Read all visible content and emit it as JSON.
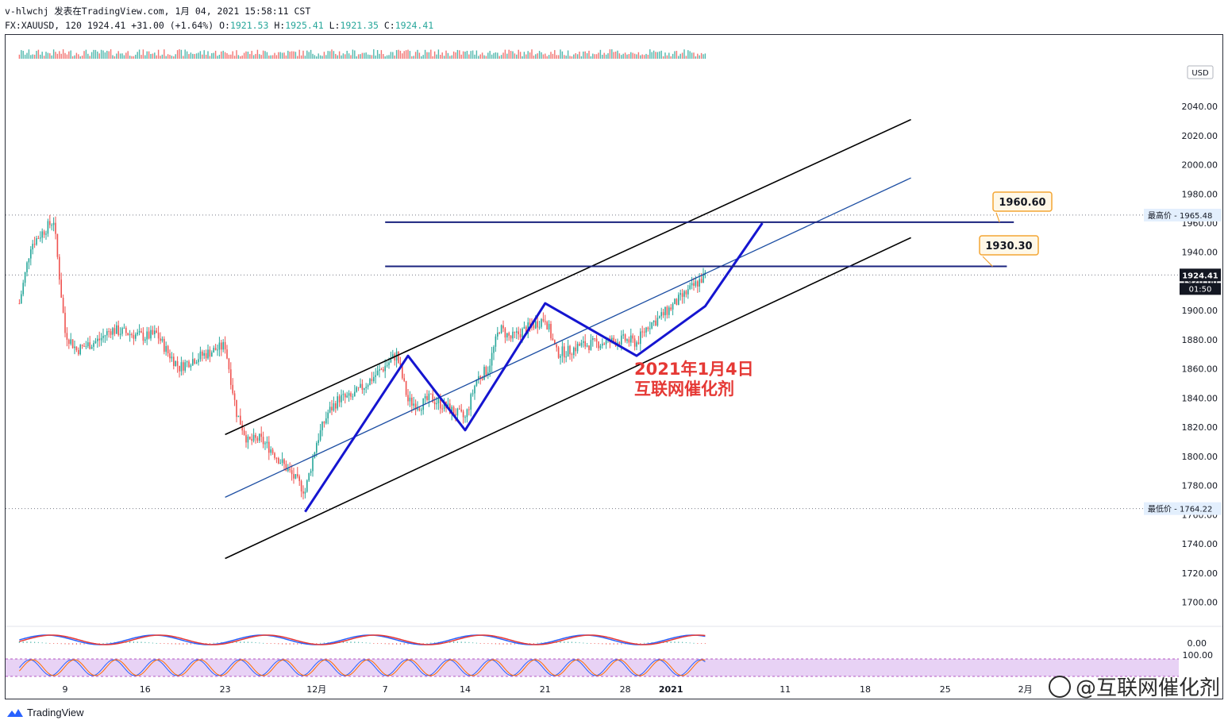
{
  "header": {
    "line1": "v-hlwchj 发表在TradingView.com, 1月 04, 2021 15:58:11 CST",
    "symbol": "FX:XAUUSD, 120",
    "last": "1924.41",
    "change": "+31.00 (+1.64%)",
    "o_label": "O:",
    "o": "1921.53",
    "h_label": "H:",
    "h": "1925.41",
    "l_label": "L:",
    "l": "1921.35",
    "c_label": "C:",
    "c": "1924.41"
  },
  "footer": {
    "brand": "TradingView"
  },
  "watermark": {
    "text": "@互联网催化剂"
  },
  "annotation": {
    "line1": "2021年1月4日",
    "line2": "互联网催化剂"
  },
  "colors": {
    "up": "#26a69a",
    "down": "#ef5350",
    "channel": "#000000",
    "midline": "#1e4fa3",
    "zigzag": "#1515d0",
    "level": "#1a237e",
    "callout": "#f4a533",
    "annotation": "#e53935"
  },
  "chart_data": {
    "type": "candlestick",
    "currency_label": "USD",
    "y_ticks": [
      "2040.00",
      "2020.00",
      "2000.00",
      "1980.00",
      "1960.00",
      "1940.00",
      "1920.00",
      "1900.00",
      "1880.00",
      "1860.00",
      "1840.00",
      "1820.00",
      "1800.00",
      "1780.00",
      "1760.00",
      "1740.00",
      "1720.00",
      "1700.00"
    ],
    "x_ticks": [
      "9",
      "16",
      "23",
      "12月",
      "7",
      "14",
      "21",
      "28",
      "2021",
      "11",
      "18",
      "25",
      "2月"
    ],
    "ylim": [
      1690,
      2060
    ],
    "high_label": "最高价",
    "high_value": "1965.48",
    "low_label": "最低价",
    "low_value": "1764.22",
    "last_price": "1924.41",
    "countdown": "01:50",
    "levels": [
      {
        "label": "1960.60",
        "value": 1960.6
      },
      {
        "label": "1930.30",
        "value": 1930.3
      }
    ],
    "price_path": [
      {
        "date": "11-05",
        "price": 1905
      },
      {
        "date": "11-06",
        "price": 1945
      },
      {
        "date": "11-08",
        "price": 1962
      },
      {
        "date": "11-09",
        "price": 1885
      },
      {
        "date": "11-10",
        "price": 1873
      },
      {
        "date": "11-12",
        "price": 1880
      },
      {
        "date": "11-13",
        "price": 1887
      },
      {
        "date": "11-16",
        "price": 1882
      },
      {
        "date": "11-17",
        "price": 1884
      },
      {
        "date": "11-18",
        "price": 1871
      },
      {
        "date": "11-19",
        "price": 1861
      },
      {
        "date": "11-20",
        "price": 1866
      },
      {
        "date": "11-23",
        "price": 1876
      },
      {
        "date": "11-24",
        "price": 1830
      },
      {
        "date": "11-25",
        "price": 1810
      },
      {
        "date": "11-26",
        "price": 1812
      },
      {
        "date": "11-27",
        "price": 1805
      },
      {
        "date": "11-30",
        "price": 1776
      },
      {
        "date": "12-01",
        "price": 1810
      },
      {
        "date": "12-02",
        "price": 1830
      },
      {
        "date": "12-03",
        "price": 1840
      },
      {
        "date": "12-04",
        "price": 1840
      },
      {
        "date": "12-07",
        "price": 1862
      },
      {
        "date": "12-08",
        "price": 1870
      },
      {
        "date": "12-09",
        "price": 1838
      },
      {
        "date": "12-10",
        "price": 1835
      },
      {
        "date": "12-11",
        "price": 1840
      },
      {
        "date": "12-14",
        "price": 1826
      },
      {
        "date": "12-15",
        "price": 1853
      },
      {
        "date": "12-16",
        "price": 1860
      },
      {
        "date": "12-17",
        "price": 1888
      },
      {
        "date": "12-18",
        "price": 1881
      },
      {
        "date": "12-21",
        "price": 1895
      },
      {
        "date": "12-22",
        "price": 1871
      },
      {
        "date": "12-23",
        "price": 1872
      },
      {
        "date": "12-24",
        "price": 1876
      },
      {
        "date": "12-28",
        "price": 1880
      },
      {
        "date": "12-29",
        "price": 1878
      },
      {
        "date": "12-30",
        "price": 1890
      },
      {
        "date": "12-31",
        "price": 1895
      },
      {
        "date": "01-04",
        "price": 1924
      }
    ],
    "macd_zero_label": "0.00",
    "stoch_top_label": "100.00"
  }
}
